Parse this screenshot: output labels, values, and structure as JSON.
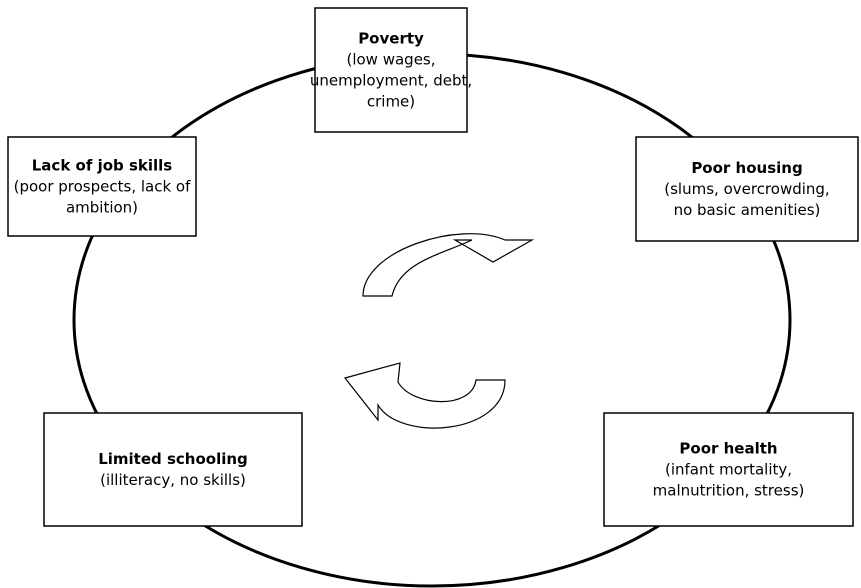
{
  "nodes": [
    {
      "title": "Poverty",
      "lines": [
        "(low wages,",
        "unemployment, debt,",
        "crime)"
      ]
    },
    {
      "title": "Lack of job skills",
      "lines": [
        "(poor prospects, lack of",
        "ambition)"
      ]
    },
    {
      "title": "Poor housing",
      "lines": [
        "(slums, overcrowding,",
        "no basic amenities)"
      ]
    },
    {
      "title": "Limited schooling",
      "lines": [
        "(illiteracy, no skills)"
      ]
    },
    {
      "title": "Poor health",
      "lines": [
        "(infant mortality,",
        "malnutrition, stress)"
      ]
    }
  ]
}
